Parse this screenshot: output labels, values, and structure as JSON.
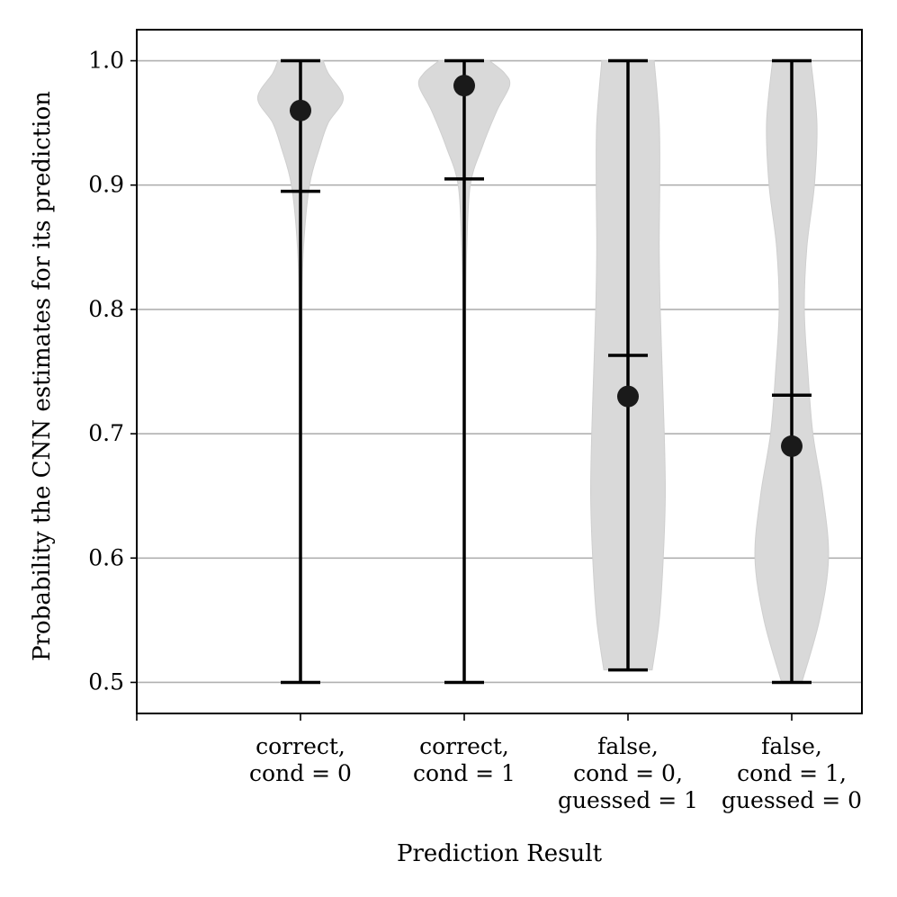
{
  "chart_data": {
    "type": "violin",
    "xlabel": "Prediction Result",
    "ylabel": "Probability the CNN estimates for its prediction",
    "ylim": [
      0.475,
      1.025
    ],
    "yticks": [
      0.5,
      0.6,
      0.7,
      0.8,
      0.9,
      1.0
    ],
    "ytick_labels": [
      "0.5",
      "0.6",
      "0.7",
      "0.8",
      "0.9",
      "1.0"
    ],
    "grid": "horizontal",
    "colors": {
      "violin": "#d9d9d9",
      "whisker": "#000000",
      "point": "#1a1a1a",
      "grid": "#b0b0b0",
      "axes": "#000000"
    },
    "categories": [
      {
        "label_lines": [
          "correct,",
          "cond = 0"
        ],
        "min": 0.5,
        "max": 1.0,
        "mean": 0.895,
        "median": 0.96,
        "density": [
          [
            0.5,
            0.01
          ],
          [
            0.6,
            0.015
          ],
          [
            0.7,
            0.02
          ],
          [
            0.8,
            0.03
          ],
          [
            0.85,
            0.06
          ],
          [
            0.9,
            0.18
          ],
          [
            0.93,
            0.38
          ],
          [
            0.95,
            0.55
          ],
          [
            0.97,
            0.85
          ],
          [
            0.99,
            0.55
          ],
          [
            1.0,
            0.45
          ]
        ]
      },
      {
        "label_lines": [
          "correct,",
          "cond = 1"
        ],
        "min": 0.5,
        "max": 1.0,
        "mean": 0.905,
        "median": 0.98,
        "density": [
          [
            0.5,
            0.01
          ],
          [
            0.6,
            0.015
          ],
          [
            0.7,
            0.02
          ],
          [
            0.8,
            0.03
          ],
          [
            0.85,
            0.05
          ],
          [
            0.9,
            0.12
          ],
          [
            0.93,
            0.35
          ],
          [
            0.96,
            0.65
          ],
          [
            0.98,
            0.9
          ],
          [
            0.99,
            0.8
          ],
          [
            1.0,
            0.5
          ]
        ]
      },
      {
        "label_lines": [
          "false,",
          "cond = 0,",
          "guessed = 1"
        ],
        "min": 0.51,
        "max": 1.0,
        "mean": 0.763,
        "median": 0.73,
        "density": [
          [
            0.51,
            0.48
          ],
          [
            0.55,
            0.62
          ],
          [
            0.6,
            0.7
          ],
          [
            0.65,
            0.74
          ],
          [
            0.7,
            0.72
          ],
          [
            0.75,
            0.68
          ],
          [
            0.8,
            0.64
          ],
          [
            0.85,
            0.62
          ],
          [
            0.9,
            0.63
          ],
          [
            0.95,
            0.62
          ],
          [
            1.0,
            0.52
          ]
        ]
      },
      {
        "label_lines": [
          "false,",
          "cond = 1,",
          "guessed = 0"
        ],
        "min": 0.5,
        "max": 1.0,
        "mean": 0.731,
        "median": 0.69,
        "density": [
          [
            0.5,
            0.2
          ],
          [
            0.55,
            0.55
          ],
          [
            0.6,
            0.73
          ],
          [
            0.65,
            0.62
          ],
          [
            0.7,
            0.42
          ],
          [
            0.75,
            0.32
          ],
          [
            0.8,
            0.25
          ],
          [
            0.85,
            0.3
          ],
          [
            0.9,
            0.45
          ],
          [
            0.95,
            0.5
          ],
          [
            1.0,
            0.38
          ]
        ]
      }
    ]
  }
}
